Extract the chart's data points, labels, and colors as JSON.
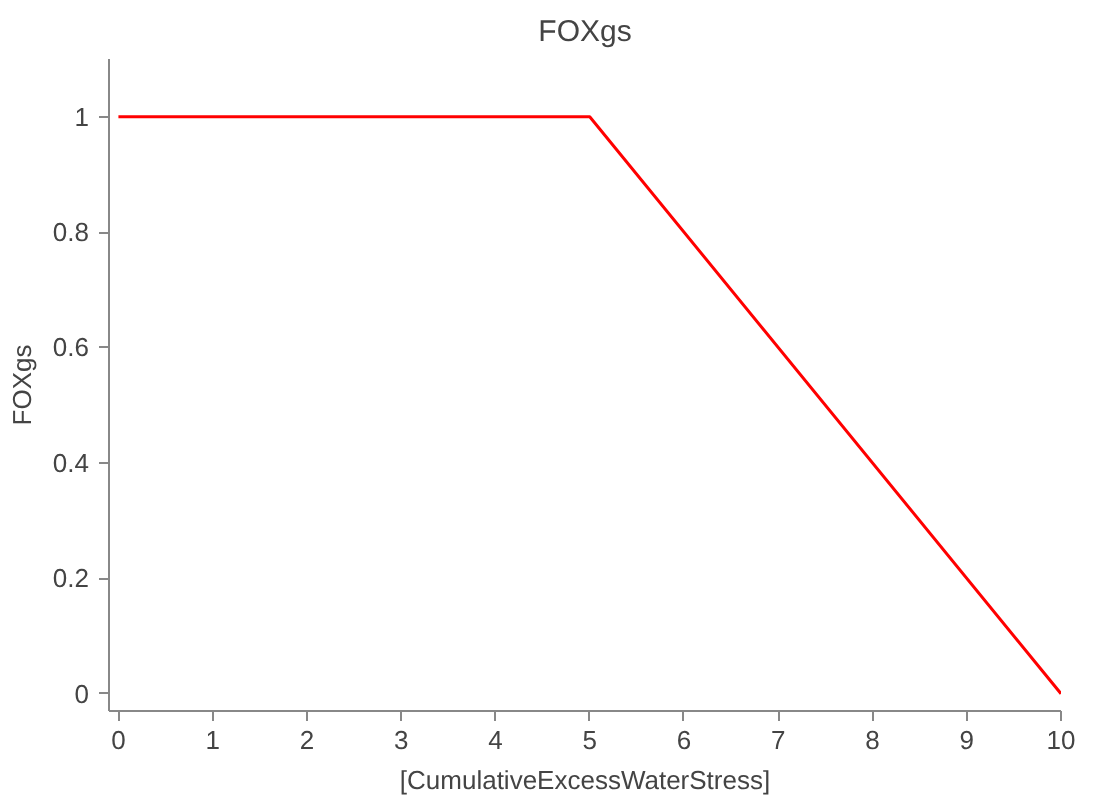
{
  "chart_data": {
    "type": "line",
    "title": "FOXgs",
    "xlabel": "[CumulativeExcessWaterStress]",
    "ylabel": "FOXgs",
    "x": [
      0,
      5,
      10
    ],
    "series": [
      {
        "color": "#ff0000",
        "values": [
          1,
          1,
          0
        ]
      }
    ],
    "xlim": [
      -0.1,
      10
    ],
    "ylim": [
      -0.03,
      1.1
    ],
    "xticks": [
      0,
      1,
      2,
      3,
      4,
      5,
      6,
      7,
      8,
      9,
      10
    ],
    "yticks": [
      0,
      0.2,
      0.4,
      0.6,
      0.8,
      1
    ],
    "marker": "none",
    "line_style": "solid"
  }
}
